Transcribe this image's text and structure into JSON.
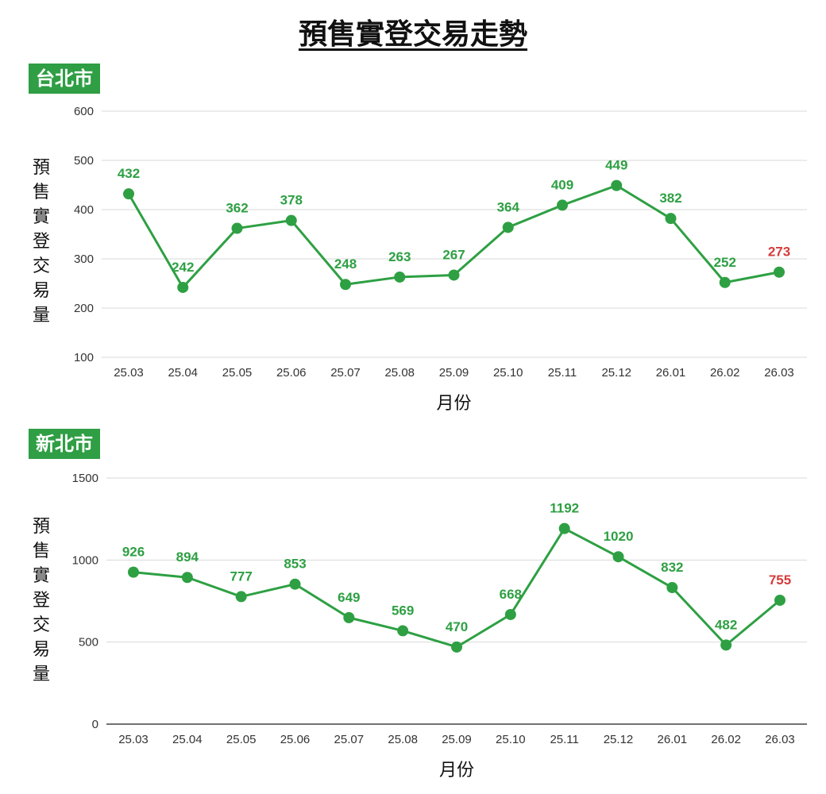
{
  "page": {
    "title": "預售實登交易走勢"
  },
  "colors": {
    "line": "#2ea043",
    "highlight": "#d63b3b",
    "badge_bg": "#2f9e44",
    "grid": "#d9d9d9"
  },
  "chart_data": [
    {
      "type": "line",
      "badge": "台北市",
      "ylabel": "預售實登交易量",
      "xlabel": "月份",
      "categories": [
        "25.03",
        "25.04",
        "25.05",
        "25.06",
        "25.07",
        "25.08",
        "25.09",
        "25.10",
        "25.11",
        "25.12",
        "26.01",
        "26.02",
        "26.03"
      ],
      "series": [
        {
          "values": [
            432,
            242,
            362,
            378,
            248,
            263,
            267,
            364,
            409,
            449,
            382,
            252,
            273
          ]
        }
      ],
      "ylim": [
        100,
        600
      ],
      "yticks": [
        100,
        200,
        300,
        400,
        500,
        600
      ],
      "highlight_last": true,
      "grid": true
    },
    {
      "type": "line",
      "badge": "新北市",
      "ylabel": "預售實登交易量",
      "xlabel": "月份",
      "categories": [
        "25.03",
        "25.04",
        "25.05",
        "25.06",
        "25.07",
        "25.08",
        "25.09",
        "25.10",
        "25.11",
        "25.12",
        "26.01",
        "26.02",
        "26.03"
      ],
      "series": [
        {
          "values": [
            926,
            894,
            777,
            853,
            649,
            569,
            470,
            668,
            1192,
            1020,
            832,
            482,
            755
          ]
        }
      ],
      "ylim": [
        0,
        1500
      ],
      "yticks": [
        0,
        500,
        1000,
        1500
      ],
      "highlight_last": true,
      "grid": true
    }
  ]
}
